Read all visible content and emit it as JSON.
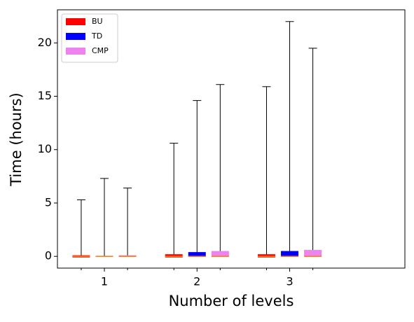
{
  "chart_data": {
    "type": "box",
    "xlabel": "Number of levels",
    "ylabel": "Time (hours)",
    "categories": [
      "1",
      "2",
      "3"
    ],
    "ylim": [
      -1.1,
      23.1
    ],
    "yticks": [
      0,
      5,
      10,
      15,
      20
    ],
    "legend": "upper left",
    "median_color": "#ff7f0e",
    "series": [
      {
        "name": "BU",
        "color": "#ff0000",
        "whisker_low": [
          0,
          0,
          0
        ],
        "q1": [
          -0.1,
          -0.1,
          -0.1
        ],
        "median": [
          0,
          0,
          0
        ],
        "q3": [
          0.1,
          0.2,
          0.2
        ],
        "whisker_high": [
          5.3,
          10.6,
          15.9
        ]
      },
      {
        "name": "TD",
        "color": "#0000ff",
        "whisker_low": [
          0,
          0,
          0
        ],
        "q1": [
          -0.05,
          -0.05,
          -0.05
        ],
        "median": [
          0,
          0,
          0
        ],
        "q3": [
          0.05,
          0.4,
          0.5
        ],
        "whisker_high": [
          7.3,
          14.6,
          22.0
        ]
      },
      {
        "name": "CMP",
        "color": "#ee82ee",
        "whisker_low": [
          0,
          0,
          0
        ],
        "q1": [
          -0.05,
          -0.05,
          -0.05
        ],
        "median": [
          0,
          0,
          0
        ],
        "q3": [
          0.1,
          0.5,
          0.6
        ],
        "whisker_high": [
          6.4,
          16.1,
          19.5
        ]
      }
    ]
  }
}
